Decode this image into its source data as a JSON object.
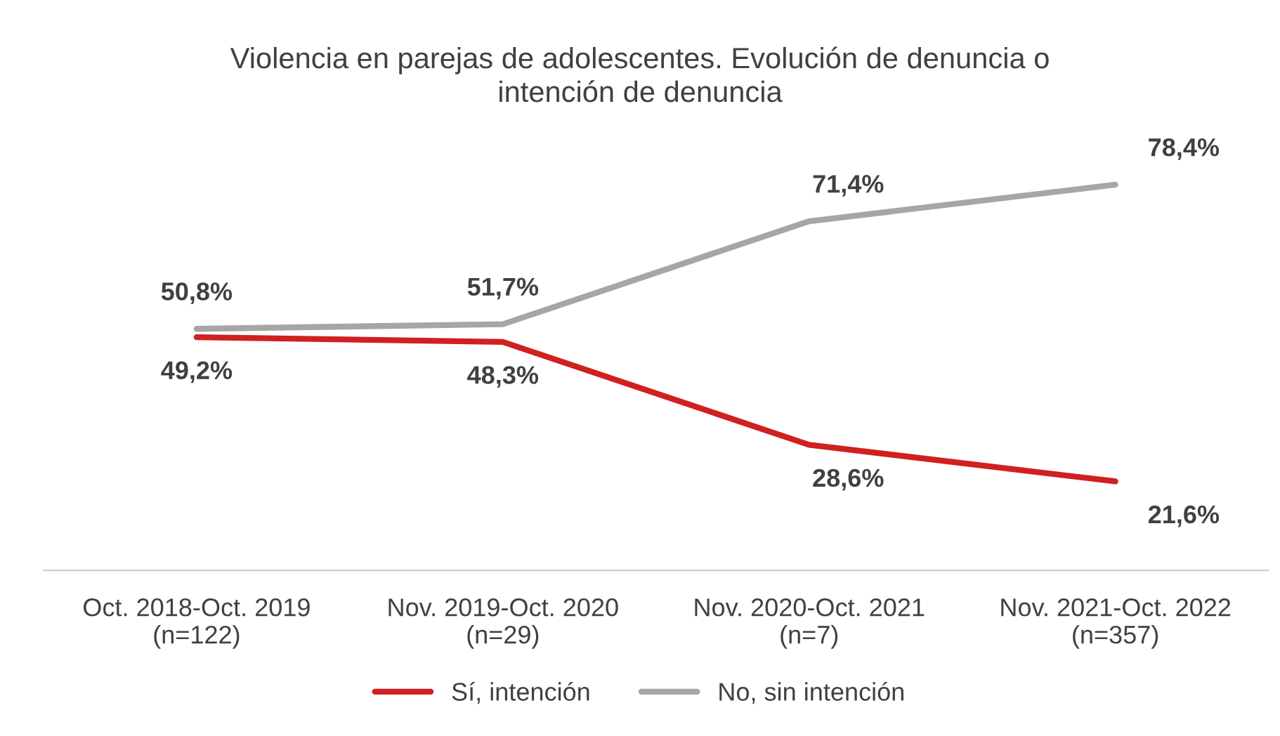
{
  "chart_data": {
    "type": "line",
    "title": "Violencia en parejas de adolescentes. Evolución de denuncia o\nintención de denuncia",
    "categories": [
      "Oct. 2018-Oct. 2019\n(n=122)",
      "Nov. 2019-Oct. 2020\n(n=29)",
      "Nov. 2020-Oct. 2021\n(n=7)",
      "Nov. 2021-Oct. 2022\n(n=357)"
    ],
    "series": [
      {
        "name": "Sí, intención",
        "color": "#d0201f",
        "values": [
          49.2,
          48.3,
          28.6,
          21.6
        ],
        "value_labels": [
          "49,2%",
          "48,3%",
          "28,6%",
          "21,6%"
        ]
      },
      {
        "name": "No, sin intención",
        "color": "#a6a6a6",
        "values": [
          50.8,
          51.7,
          71.4,
          78.4
        ],
        "value_labels": [
          "50,8%",
          "51,7%",
          "71,4%",
          "78,4%"
        ]
      }
    ],
    "legend": "bottom",
    "grid": false,
    "marker": "none",
    "line_style": "solid"
  }
}
